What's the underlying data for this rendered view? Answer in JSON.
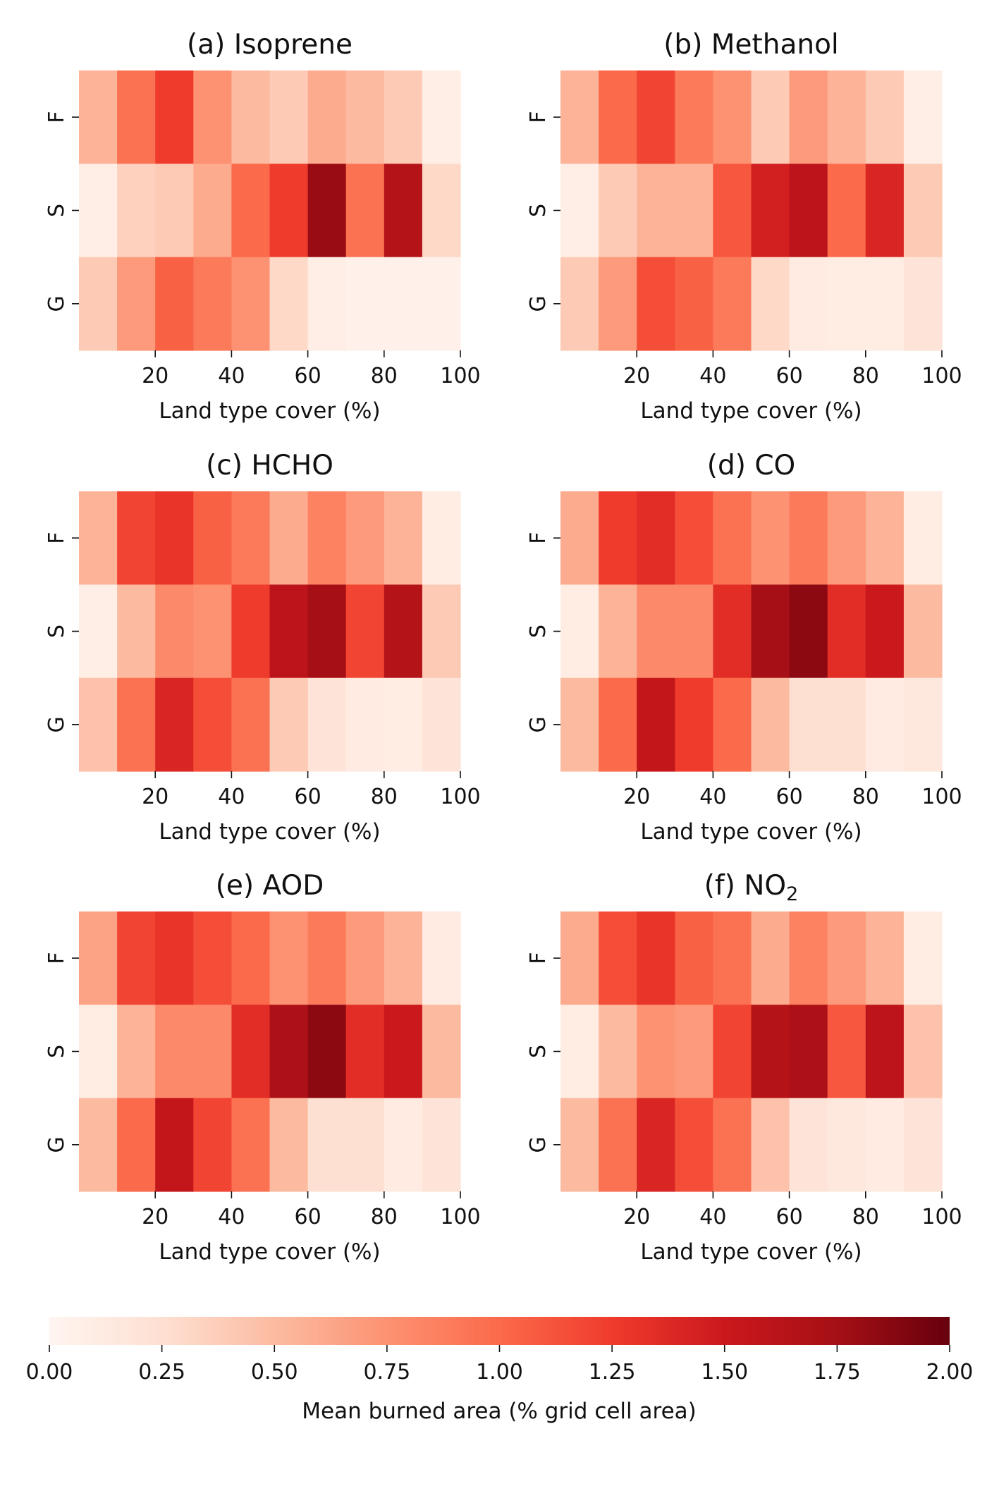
{
  "chart_data": [
    {
      "type": "heatmap",
      "title": "(a) Isoprene",
      "xlabel": "Land type cover (%)",
      "ylabel": "",
      "rows": [
        "F",
        "S",
        "G"
      ],
      "x_bins": [
        0,
        10,
        20,
        30,
        40,
        50,
        60,
        70,
        80,
        90,
        100
      ],
      "x_ticks": [
        20,
        40,
        60,
        80,
        100
      ],
      "values": [
        [
          0.55,
          0.95,
          1.25,
          0.75,
          0.5,
          0.4,
          0.6,
          0.5,
          0.4,
          0.08
        ],
        [
          0.08,
          0.35,
          0.4,
          0.6,
          1.0,
          1.25,
          1.8,
          0.95,
          1.65,
          0.3
        ],
        [
          0.4,
          0.7,
          1.05,
          0.9,
          0.75,
          0.3,
          0.08,
          0.06,
          0.06,
          0.06
        ]
      ]
    },
    {
      "type": "heatmap",
      "title": "(b) Methanol",
      "xlabel": "Land type cover (%)",
      "ylabel": "",
      "rows": [
        "F",
        "S",
        "G"
      ],
      "x_bins": [
        0,
        10,
        20,
        30,
        40,
        50,
        60,
        70,
        80,
        90,
        100
      ],
      "x_ticks": [
        20,
        40,
        60,
        80,
        100
      ],
      "values": [
        [
          0.55,
          1.0,
          1.2,
          0.9,
          0.75,
          0.4,
          0.7,
          0.55,
          0.4,
          0.08
        ],
        [
          0.08,
          0.4,
          0.55,
          0.55,
          1.1,
          1.45,
          1.6,
          1.0,
          1.4,
          0.4
        ],
        [
          0.4,
          0.7,
          1.15,
          1.05,
          0.9,
          0.3,
          0.12,
          0.1,
          0.1,
          0.2
        ]
      ]
    },
    {
      "type": "heatmap",
      "title": "(c) HCHO",
      "xlabel": "Land type cover (%)",
      "ylabel": "",
      "rows": [
        "F",
        "S",
        "G"
      ],
      "x_bins": [
        0,
        10,
        20,
        30,
        40,
        50,
        60,
        70,
        80,
        90,
        100
      ],
      "x_ticks": [
        20,
        40,
        60,
        80,
        100
      ],
      "values": [
        [
          0.55,
          1.2,
          1.3,
          1.05,
          0.9,
          0.6,
          0.85,
          0.7,
          0.55,
          0.1
        ],
        [
          0.08,
          0.5,
          0.8,
          0.75,
          1.25,
          1.6,
          1.75,
          1.2,
          1.65,
          0.4
        ],
        [
          0.45,
          0.95,
          1.4,
          1.15,
          0.95,
          0.4,
          0.2,
          0.12,
          0.1,
          0.2
        ]
      ]
    },
    {
      "type": "heatmap",
      "title": "(d) CO",
      "xlabel": "Land type cover (%)",
      "ylabel": "",
      "rows": [
        "F",
        "S",
        "G"
      ],
      "x_bins": [
        0,
        10,
        20,
        30,
        40,
        50,
        60,
        70,
        80,
        90,
        100
      ],
      "x_ticks": [
        20,
        40,
        60,
        80,
        100
      ],
      "values": [
        [
          0.6,
          1.25,
          1.35,
          1.15,
          0.95,
          0.75,
          0.9,
          0.7,
          0.55,
          0.1
        ],
        [
          0.1,
          0.55,
          0.8,
          0.8,
          1.35,
          1.75,
          1.85,
          1.35,
          1.5,
          0.5
        ],
        [
          0.5,
          1.0,
          1.55,
          1.25,
          1.0,
          0.5,
          0.25,
          0.25,
          0.12,
          0.15
        ]
      ]
    },
    {
      "type": "heatmap",
      "title": "(e) AOD",
      "xlabel": "Land type cover (%)",
      "ylabel": "",
      "rows": [
        "F",
        "S",
        "G"
      ],
      "x_bins": [
        0,
        10,
        20,
        30,
        40,
        50,
        60,
        70,
        80,
        90,
        100
      ],
      "x_ticks": [
        20,
        40,
        60,
        80,
        100
      ],
      "values": [
        [
          0.65,
          1.2,
          1.3,
          1.15,
          1.0,
          0.75,
          0.9,
          0.7,
          0.55,
          0.12
        ],
        [
          0.1,
          0.55,
          0.8,
          0.8,
          1.35,
          1.7,
          1.85,
          1.35,
          1.5,
          0.5
        ],
        [
          0.5,
          1.0,
          1.55,
          1.2,
          0.95,
          0.5,
          0.25,
          0.25,
          0.12,
          0.2
        ]
      ]
    },
    {
      "type": "heatmap",
      "title": "(f) NO",
      "title_subscript": "2",
      "xlabel": "Land type cover (%)",
      "ylabel": "",
      "rows": [
        "F",
        "S",
        "G"
      ],
      "x_bins": [
        0,
        10,
        20,
        30,
        40,
        50,
        60,
        70,
        80,
        90,
        100
      ],
      "x_ticks": [
        20,
        40,
        60,
        80,
        100
      ],
      "values": [
        [
          0.6,
          1.15,
          1.3,
          1.05,
          0.95,
          0.6,
          0.85,
          0.7,
          0.55,
          0.1
        ],
        [
          0.1,
          0.5,
          0.75,
          0.7,
          1.2,
          1.65,
          1.7,
          1.1,
          1.6,
          0.45
        ],
        [
          0.5,
          0.95,
          1.4,
          1.15,
          0.95,
          0.45,
          0.2,
          0.15,
          0.12,
          0.2
        ]
      ]
    }
  ],
  "colorbar": {
    "label": "Mean burned area (% grid cell area)",
    "range": [
      0,
      2
    ],
    "ticks": [
      "0.00",
      "0.25",
      "0.50",
      "0.75",
      "1.00",
      "1.25",
      "1.50",
      "1.75",
      "2.00"
    ],
    "colormap": [
      "#fff5f0",
      "#fee0d2",
      "#fcbba1",
      "#fc9272",
      "#fb6a4a",
      "#ef3b2c",
      "#cb181d",
      "#a50f15",
      "#67000d"
    ]
  }
}
